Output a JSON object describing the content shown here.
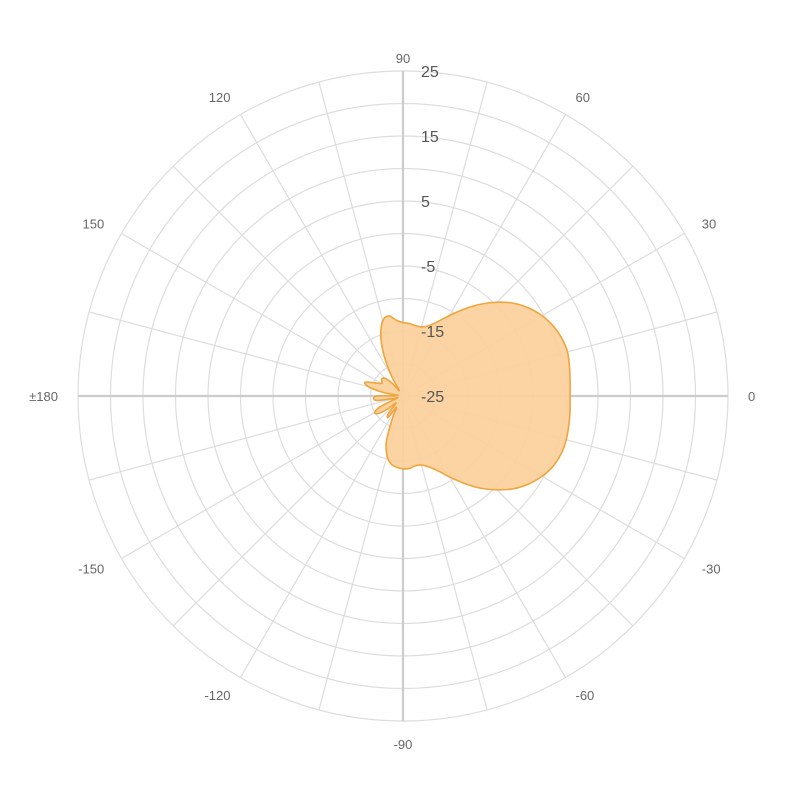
{
  "chart_data": {
    "type": "area",
    "subtype": "polar",
    "title": "",
    "angle_unit": "degrees",
    "angle_tick_labels": [
      {
        "angle": 0,
        "label": "0"
      },
      {
        "angle": 30,
        "label": "30"
      },
      {
        "angle": 60,
        "label": "60"
      },
      {
        "angle": 90,
        "label": "90"
      },
      {
        "angle": 120,
        "label": "120"
      },
      {
        "angle": 150,
        "label": "150"
      },
      {
        "angle": 180,
        "label": "±180"
      },
      {
        "angle": -150,
        "label": "-150"
      },
      {
        "angle": -120,
        "label": "-120"
      },
      {
        "angle": -90,
        "label": "-90"
      },
      {
        "angle": -60,
        "label": "-60"
      },
      {
        "angle": -30,
        "label": "-30"
      }
    ],
    "spoke_step_deg": 15,
    "radial_range": [
      -25,
      25
    ],
    "radial_ticks": [
      -25,
      -15,
      -5,
      5,
      15,
      25
    ],
    "radial_tick_labels": [
      "-25",
      "-15",
      "-5",
      "5",
      "15",
      "25"
    ],
    "grid_rings": [
      -20,
      -15,
      -10,
      -5,
      0,
      5,
      10,
      15,
      20,
      25
    ],
    "grid": true,
    "series": [
      {
        "points": [
          {
            "angle": 0,
            "r": 0.7
          },
          {
            "angle": 5,
            "r": 0.8
          },
          {
            "angle": 10,
            "r": 1.0
          },
          {
            "angle": 15,
            "r": 1.2
          },
          {
            "angle": 20,
            "r": 1.0
          },
          {
            "angle": 25,
            "r": 0.5
          },
          {
            "angle": 30,
            "r": -0.3
          },
          {
            "angle": 35,
            "r": -1.4
          },
          {
            "angle": 40,
            "r": -2.8
          },
          {
            "angle": 45,
            "r": -4.6
          },
          {
            "angle": 50,
            "r": -6.6
          },
          {
            "angle": 55,
            "r": -8.7
          },
          {
            "angle": 60,
            "r": -10.7
          },
          {
            "angle": 65,
            "r": -12.4
          },
          {
            "angle": 70,
            "r": -13.5
          },
          {
            "angle": 75,
            "r": -14.0
          },
          {
            "angle": 80,
            "r": -14.0
          },
          {
            "angle": 85,
            "r": -13.8
          },
          {
            "angle": 90,
            "r": -13.7
          },
          {
            "angle": 95,
            "r": -13.3
          },
          {
            "angle": 100,
            "r": -12.5
          },
          {
            "angle": 105,
            "r": -13.0
          },
          {
            "angle": 110,
            "r": -15.0
          },
          {
            "angle": 115,
            "r": -18.0
          },
          {
            "angle": 120,
            "r": -21.5
          },
          {
            "angle": 125,
            "r": -24.0
          },
          {
            "angle": 130,
            "r": -22.5
          },
          {
            "angle": 135,
            "r": -21.2
          },
          {
            "angle": 140,
            "r": -20.8
          },
          {
            "angle": 145,
            "r": -21.0
          },
          {
            "angle": 150,
            "r": -21.2
          },
          {
            "angle": 155,
            "r": -20.2
          },
          {
            "angle": 160,
            "r": -18.8
          },
          {
            "angle": 165,
            "r": -19.5
          },
          {
            "angle": 170,
            "r": -22.0
          },
          {
            "angle": 175,
            "r": -24.2
          },
          {
            "angle": 180,
            "r": -21.0
          },
          {
            "angle": -175,
            "r": -20.5
          },
          {
            "angle": -170,
            "r": -21.0
          },
          {
            "angle": -165,
            "r": -23.5
          },
          {
            "angle": -160,
            "r": -24.0
          },
          {
            "angle": -155,
            "r": -21.2
          },
          {
            "angle": -150,
            "r": -20.0
          },
          {
            "angle": -145,
            "r": -20.3
          },
          {
            "angle": -140,
            "r": -21.8
          },
          {
            "angle": -135,
            "r": -23.5
          },
          {
            "angle": -130,
            "r": -21.5
          },
          {
            "angle": -125,
            "r": -21.0
          },
          {
            "angle": -120,
            "r": -23.0
          },
          {
            "angle": -115,
            "r": -21.0
          },
          {
            "angle": -110,
            "r": -17.5
          },
          {
            "angle": -105,
            "r": -15.5
          },
          {
            "angle": -100,
            "r": -14.4
          },
          {
            "angle": -95,
            "r": -14.0
          },
          {
            "angle": -90,
            "r": -13.8
          },
          {
            "angle": -85,
            "r": -13.8
          },
          {
            "angle": -80,
            "r": -14.1
          },
          {
            "angle": -75,
            "r": -14.0
          },
          {
            "angle": -70,
            "r": -13.4
          },
          {
            "angle": -65,
            "r": -12.3
          },
          {
            "angle": -60,
            "r": -10.6
          },
          {
            "angle": -55,
            "r": -8.6
          },
          {
            "angle": -50,
            "r": -6.5
          },
          {
            "angle": -45,
            "r": -4.6
          },
          {
            "angle": -40,
            "r": -2.8
          },
          {
            "angle": -35,
            "r": -1.4
          },
          {
            "angle": -30,
            "r": -0.3
          },
          {
            "angle": -25,
            "r": 0.5
          },
          {
            "angle": -20,
            "r": 0.9
          },
          {
            "angle": -15,
            "r": 1.0
          },
          {
            "angle": -10,
            "r": 0.9
          },
          {
            "angle": -5,
            "r": 0.8
          }
        ]
      }
    ]
  },
  "colors": {
    "fill": "#fcd09c",
    "stroke": "#f0a43c",
    "grid": "#dddddd",
    "axis": "#cccccc",
    "angle_label": "#666666",
    "radial_label": "#555555",
    "background": "#ffffff"
  }
}
